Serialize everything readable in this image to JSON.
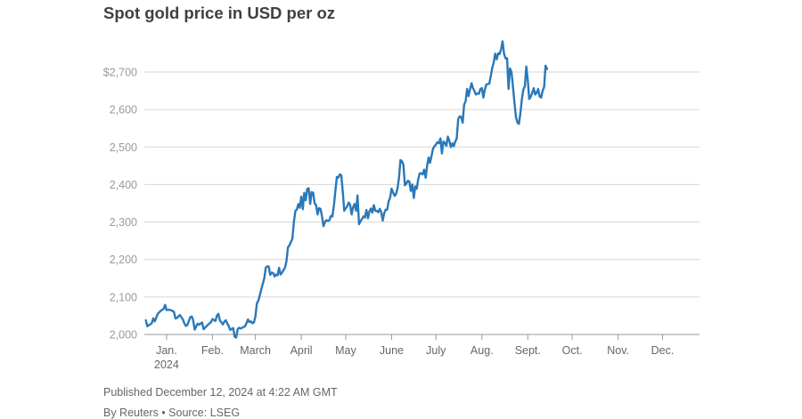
{
  "chart_data": {
    "type": "line",
    "title": "Spot gold price in USD per oz",
    "xlabel": "",
    "ylabel": "",
    "ylim": [
      2000,
      2800
    ],
    "y_ticks": [
      {
        "value": 2000,
        "label": "2,000"
      },
      {
        "value": 2100,
        "label": "2,100"
      },
      {
        "value": 2200,
        "label": "2,200"
      },
      {
        "value": 2300,
        "label": "2,300"
      },
      {
        "value": 2400,
        "label": "2,400"
      },
      {
        "value": 2500,
        "label": "2,500"
      },
      {
        "value": 2600,
        "label": "2,600"
      },
      {
        "value": 2700,
        "label": "$2,700"
      }
    ],
    "x_ticks": [
      {
        "label": "Jan.",
        "sublabel": "2024",
        "day": 15
      },
      {
        "label": "Feb.",
        "sublabel": "",
        "day": 46
      },
      {
        "label": "March",
        "sublabel": "",
        "day": 75
      },
      {
        "label": "April",
        "sublabel": "",
        "day": 106
      },
      {
        "label": "May",
        "sublabel": "",
        "day": 136
      },
      {
        "label": "June",
        "sublabel": "",
        "day": 167
      },
      {
        "label": "July",
        "sublabel": "",
        "day": 197
      },
      {
        "label": "Aug.",
        "sublabel": "",
        "day": 228
      },
      {
        "label": "Sept.",
        "sublabel": "",
        "day": 259
      },
      {
        "label": "Oct.",
        "sublabel": "",
        "day": 289
      },
      {
        "label": "Nov.",
        "sublabel": "",
        "day": 320
      },
      {
        "label": "Dec.",
        "sublabel": "",
        "day": 350
      }
    ],
    "xlim": [
      0,
      375
    ],
    "grid": true,
    "series": [
      {
        "name": "Spot gold",
        "color": "#2a78b8",
        "points": [
          [
            1,
            2038
          ],
          [
            2,
            2022
          ],
          [
            5,
            2030
          ],
          [
            6,
            2043
          ],
          [
            7,
            2035
          ],
          [
            9,
            2055
          ],
          [
            11,
            2063
          ],
          [
            13,
            2068
          ],
          [
            14,
            2079
          ],
          [
            15,
            2065
          ],
          [
            17,
            2066
          ],
          [
            19,
            2063
          ],
          [
            20,
            2060
          ],
          [
            21,
            2043
          ],
          [
            22,
            2044
          ],
          [
            24,
            2052
          ],
          [
            26,
            2040
          ],
          [
            27,
            2030
          ],
          [
            28,
            2023
          ],
          [
            29,
            2025
          ],
          [
            31,
            2046
          ],
          [
            32,
            2048
          ],
          [
            33,
            2038
          ],
          [
            34,
            2013
          ],
          [
            36,
            2029
          ],
          [
            37,
            2026
          ],
          [
            39,
            2032
          ],
          [
            40,
            2014
          ],
          [
            42,
            2022
          ],
          [
            43,
            2026
          ],
          [
            45,
            2033
          ],
          [
            46,
            2041
          ],
          [
            48,
            2036
          ],
          [
            49,
            2050
          ],
          [
            50,
            2055
          ],
          [
            51,
            2038
          ],
          [
            53,
            2027
          ],
          [
            54,
            2034
          ],
          [
            55,
            2038
          ],
          [
            56,
            2030
          ],
          [
            57,
            2022
          ],
          [
            58,
            2012
          ],
          [
            59,
            2015
          ],
          [
            60,
            2017
          ],
          [
            61,
            1994
          ],
          [
            62,
            1992
          ],
          [
            63,
            2014
          ],
          [
            64,
            2018
          ],
          [
            65,
            2016
          ],
          [
            66,
            2018
          ],
          [
            68,
            2022
          ],
          [
            69,
            2030
          ],
          [
            70,
            2040
          ],
          [
            71,
            2033
          ],
          [
            72,
            2035
          ],
          [
            73,
            2030
          ],
          [
            74,
            2032
          ],
          [
            75,
            2048
          ],
          [
            76,
            2083
          ],
          [
            77,
            2090
          ],
          [
            78,
            2105
          ],
          [
            79,
            2120
          ],
          [
            80,
            2135
          ],
          [
            81,
            2150
          ],
          [
            82,
            2178
          ],
          [
            83,
            2182
          ],
          [
            84,
            2181
          ],
          [
            85,
            2159
          ],
          [
            86,
            2165
          ],
          [
            87,
            2164
          ],
          [
            88,
            2155
          ],
          [
            89,
            2160
          ],
          [
            90,
            2158
          ],
          [
            91,
            2178
          ],
          [
            92,
            2160
          ],
          [
            93,
            2165
          ],
          [
            94,
            2172
          ],
          [
            95,
            2178
          ],
          [
            96,
            2196
          ],
          [
            97,
            2232
          ],
          [
            98,
            2238
          ],
          [
            99,
            2247
          ],
          [
            100,
            2255
          ],
          [
            101,
            2300
          ],
          [
            102,
            2330
          ],
          [
            103,
            2333
          ],
          [
            104,
            2348
          ],
          [
            105,
            2338
          ],
          [
            106,
            2368
          ],
          [
            107,
            2334
          ],
          [
            108,
            2378
          ],
          [
            109,
            2358
          ],
          [
            110,
            2388
          ],
          [
            111,
            2390
          ],
          [
            112,
            2348
          ],
          [
            113,
            2380
          ],
          [
            114,
            2378
          ],
          [
            115,
            2350
          ],
          [
            116,
            2345
          ],
          [
            117,
            2320
          ],
          [
            118,
            2337
          ],
          [
            119,
            2335
          ],
          [
            120,
            2315
          ],
          [
            121,
            2289
          ],
          [
            122,
            2300
          ],
          [
            123,
            2305
          ],
          [
            124,
            2303
          ],
          [
            125,
            2305
          ],
          [
            126,
            2316
          ],
          [
            127,
            2315
          ],
          [
            128,
            2344
          ],
          [
            129,
            2381
          ],
          [
            130,
            2420
          ],
          [
            131,
            2418
          ],
          [
            132,
            2427
          ],
          [
            133,
            2425
          ],
          [
            134,
            2382
          ],
          [
            135,
            2330
          ],
          [
            136,
            2336
          ],
          [
            137,
            2342
          ],
          [
            138,
            2352
          ],
          [
            139,
            2346
          ],
          [
            140,
            2320
          ],
          [
            141,
            2339
          ],
          [
            142,
            2348
          ],
          [
            143,
            2330
          ],
          [
            144,
            2371
          ],
          [
            145,
            2294
          ],
          [
            146,
            2302
          ],
          [
            147,
            2308
          ],
          [
            148,
            2315
          ],
          [
            149,
            2312
          ],
          [
            150,
            2332
          ],
          [
            151,
            2310
          ],
          [
            152,
            2328
          ],
          [
            153,
            2336
          ],
          [
            154,
            2325
          ],
          [
            155,
            2345
          ],
          [
            156,
            2330
          ],
          [
            157,
            2330
          ],
          [
            158,
            2326
          ],
          [
            159,
            2335
          ],
          [
            160,
            2327
          ],
          [
            161,
            2304
          ],
          [
            162,
            2323
          ],
          [
            163,
            2333
          ],
          [
            164,
            2333
          ],
          [
            165,
            2355
          ],
          [
            166,
            2365
          ],
          [
            167,
            2389
          ],
          [
            168,
            2379
          ],
          [
            169,
            2370
          ],
          [
            170,
            2374
          ],
          [
            171,
            2390
          ],
          [
            172,
            2417
          ],
          [
            173,
            2465
          ],
          [
            174,
            2462
          ],
          [
            175,
            2453
          ],
          [
            176,
            2398
          ],
          [
            177,
            2403
          ],
          [
            178,
            2410
          ],
          [
            179,
            2408
          ],
          [
            180,
            2383
          ],
          [
            181,
            2400
          ],
          [
            182,
            2364
          ],
          [
            183,
            2395
          ],
          [
            184,
            2389
          ],
          [
            185,
            2414
          ],
          [
            186,
            2430
          ],
          [
            187,
            2430
          ],
          [
            188,
            2427
          ],
          [
            189,
            2440
          ],
          [
            190,
            2418
          ],
          [
            191,
            2450
          ],
          [
            192,
            2472
          ],
          [
            193,
            2458
          ],
          [
            194,
            2477
          ],
          [
            195,
            2496
          ],
          [
            196,
            2502
          ],
          [
            197,
            2507
          ],
          [
            198,
            2513
          ],
          [
            199,
            2510
          ],
          [
            200,
            2523
          ],
          [
            201,
            2483
          ],
          [
            202,
            2515
          ],
          [
            203,
            2511
          ],
          [
            204,
            2503
          ],
          [
            205,
            2528
          ],
          [
            206,
            2517
          ],
          [
            207,
            2500
          ],
          [
            208,
            2510
          ],
          [
            209,
            2502
          ],
          [
            210,
            2515
          ],
          [
            211,
            2522
          ],
          [
            212,
            2575
          ],
          [
            213,
            2582
          ],
          [
            214,
            2580
          ],
          [
            215,
            2565
          ],
          [
            216,
            2613
          ],
          [
            217,
            2622
          ],
          [
            218,
            2655
          ],
          [
            219,
            2636
          ],
          [
            220,
            2654
          ],
          [
            221,
            2670
          ],
          [
            222,
            2657
          ],
          [
            223,
            2649
          ],
          [
            224,
            2640
          ],
          [
            225,
            2643
          ],
          [
            226,
            2642
          ],
          [
            227,
            2655
          ],
          [
            228,
            2657
          ],
          [
            229,
            2632
          ],
          [
            230,
            2653
          ],
          [
            231,
            2667
          ],
          [
            232,
            2668
          ],
          [
            233,
            2669
          ],
          [
            234,
            2690
          ],
          [
            235,
            2711
          ],
          [
            236,
            2726
          ],
          [
            237,
            2749
          ],
          [
            238,
            2734
          ],
          [
            239,
            2750
          ],
          [
            240,
            2748
          ],
          [
            241,
            2762
          ],
          [
            242,
            2782
          ],
          [
            243,
            2748
          ],
          [
            244,
            2736
          ],
          [
            245,
            2737
          ],
          [
            246,
            2655
          ],
          [
            247,
            2710
          ],
          [
            248,
            2700
          ],
          [
            249,
            2660
          ],
          [
            250,
            2619
          ],
          [
            251,
            2580
          ],
          [
            252,
            2565
          ],
          [
            253,
            2562
          ],
          [
            254,
            2590
          ],
          [
            255,
            2627
          ],
          [
            256,
            2653
          ],
          [
            257,
            2662
          ],
          [
            258,
            2715
          ],
          [
            259,
            2678
          ],
          [
            260,
            2628
          ],
          [
            261,
            2634
          ],
          [
            262,
            2645
          ],
          [
            263,
            2657
          ],
          [
            264,
            2640
          ],
          [
            265,
            2645
          ],
          [
            266,
            2655
          ],
          [
            267,
            2635
          ],
          [
            268,
            2632
          ],
          [
            269,
            2650
          ],
          [
            270,
            2660
          ],
          [
            271,
            2717
          ],
          [
            272,
            2708
          ]
        ]
      }
    ]
  },
  "footer": {
    "published": "Published December 12, 2024 at 4:22 AM GMT",
    "byline": "By Reuters • Source: LSEG"
  }
}
